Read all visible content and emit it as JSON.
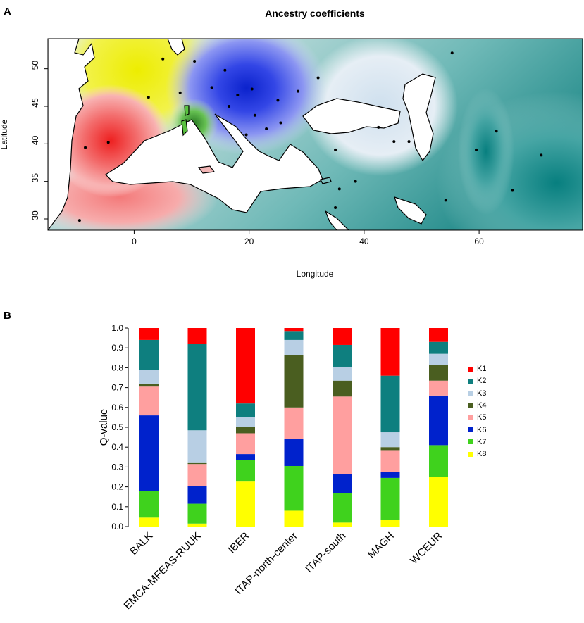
{
  "panel_a": {
    "letter": "A",
    "chart_data": {
      "type": "heatmap",
      "title": "Ancestry coefficients",
      "xlabel": "Longitude",
      "ylabel": "Latitude",
      "xlim": [
        -15,
        78
      ],
      "ylim": [
        28.5,
        54
      ],
      "xticks": [
        "0",
        "20",
        "40",
        "60"
      ],
      "yticks": [
        "30",
        "35",
        "40",
        "45",
        "50"
      ],
      "xtick_values": [
        0,
        20,
        40,
        60
      ],
      "ytick_values": [
        30,
        35,
        40,
        45,
        50
      ],
      "sample_points": [
        [
          -9.5,
          29.8
        ],
        [
          -4.5,
          40.2
        ],
        [
          -8.5,
          39.5
        ],
        [
          2.5,
          46.2
        ],
        [
          5,
          51.3
        ],
        [
          8,
          46.8
        ],
        [
          10.5,
          51
        ],
        [
          13.5,
          47.5
        ],
        [
          15.8,
          49.8
        ],
        [
          16.5,
          45
        ],
        [
          18,
          46.5
        ],
        [
          20.5,
          47.3
        ],
        [
          19.5,
          41.2
        ],
        [
          21,
          43.8
        ],
        [
          25,
          45.8
        ],
        [
          25.5,
          42.8
        ],
        [
          23,
          42
        ],
        [
          28.5,
          47
        ],
        [
          32,
          48.8
        ],
        [
          35,
          39.2
        ],
        [
          35.7,
          34
        ],
        [
          38.5,
          35
        ],
        [
          35,
          31.5
        ],
        [
          42.5,
          42.2
        ],
        [
          45.2,
          40.3
        ],
        [
          47.8,
          40.3
        ],
        [
          55.3,
          52.1
        ],
        [
          59.5,
          39.2
        ],
        [
          63,
          41.7
        ],
        [
          70.8,
          38.5
        ],
        [
          54.2,
          32.5
        ],
        [
          65.8,
          33.8
        ]
      ]
    }
  },
  "panel_b": {
    "letter": "B",
    "chart_data": {
      "type": "bar",
      "stacked": true,
      "ylabel": "Q-value",
      "ylim": [
        0,
        1
      ],
      "yticks": [
        "0.0",
        "0.1",
        "0.2",
        "0.3",
        "0.4",
        "0.5",
        "0.6",
        "0.7",
        "0.8",
        "0.9",
        "1.0"
      ],
      "categories": [
        "BALK",
        "EMCA-MFEAS-RUUK",
        "IBER",
        "ITAP-north-center",
        "ITAP-south",
        "MAGH",
        "WCEUR"
      ],
      "series": [
        {
          "name": "K8",
          "color": "#ffff00",
          "values": [
            0.045,
            0.015,
            0.23,
            0.08,
            0.02,
            0.035,
            0.25
          ]
        },
        {
          "name": "K7",
          "color": "#3fd21d",
          "values": [
            0.135,
            0.1,
            0.105,
            0.225,
            0.15,
            0.21,
            0.16
          ]
        },
        {
          "name": "K6",
          "color": "#0022cc",
          "values": [
            0.38,
            0.09,
            0.03,
            0.135,
            0.095,
            0.03,
            0.25
          ]
        },
        {
          "name": "K5",
          "color": "#ff9f9f",
          "values": [
            0.145,
            0.11,
            0.105,
            0.16,
            0.39,
            0.11,
            0.075
          ]
        },
        {
          "name": "K4",
          "color": "#4a5e20",
          "values": [
            0.015,
            0.005,
            0.03,
            0.265,
            0.08,
            0.015,
            0.08
          ]
        },
        {
          "name": "K3",
          "color": "#b8cfe4",
          "values": [
            0.07,
            0.165,
            0.05,
            0.075,
            0.07,
            0.075,
            0.055
          ]
        },
        {
          "name": "K2",
          "color": "#0e7f7f",
          "values": [
            0.15,
            0.435,
            0.07,
            0.045,
            0.11,
            0.285,
            0.06
          ]
        },
        {
          "name": "K1",
          "color": "#ff0000",
          "values": [
            0.06,
            0.08,
            0.38,
            0.015,
            0.085,
            0.24,
            0.07
          ]
        }
      ],
      "legend": [
        "K1",
        "K2",
        "K3",
        "K4",
        "K5",
        "K6",
        "K7",
        "K8"
      ],
      "legend_colors": [
        "#ff0000",
        "#0e7f7f",
        "#b8cfe4",
        "#4a5e20",
        "#ff9f9f",
        "#0022cc",
        "#3fd21d",
        "#ffff00"
      ],
      "legend_position": "right"
    }
  }
}
